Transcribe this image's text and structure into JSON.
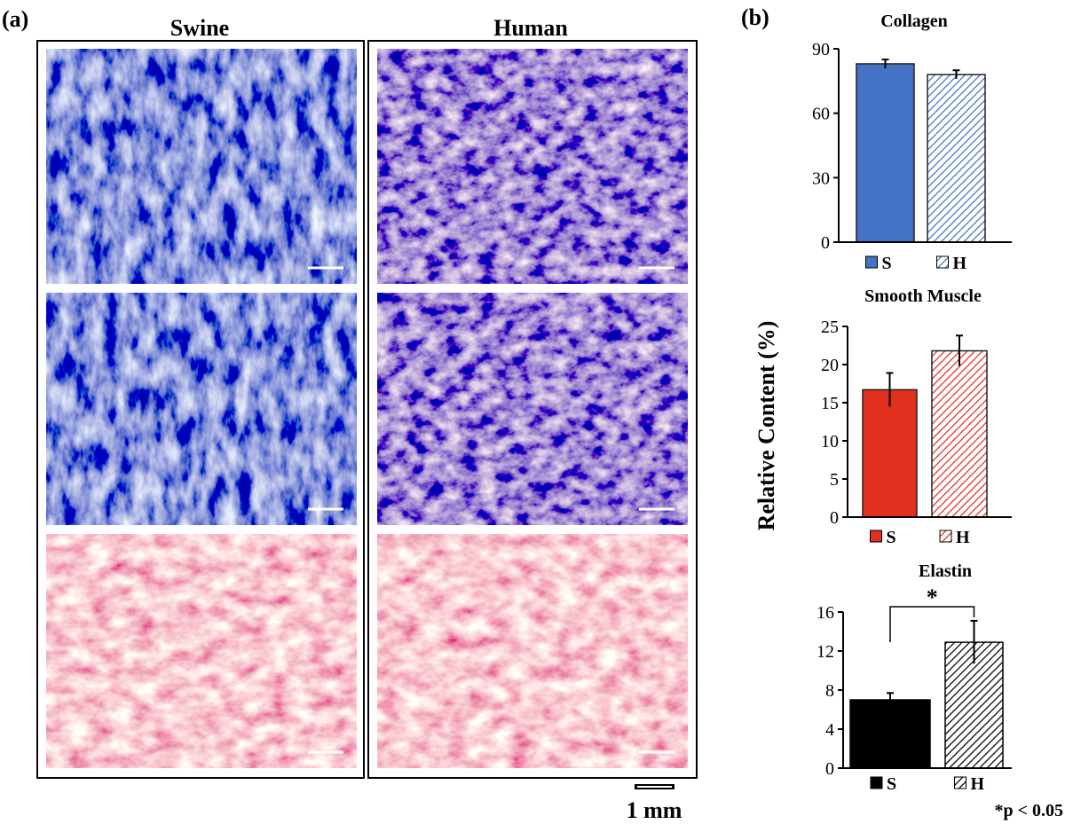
{
  "panel_a": {
    "label": "(a)",
    "columns": [
      "Swine",
      "Human"
    ],
    "scale_bar": "1 mm"
  },
  "panel_b_label": "(b)",
  "y_label": "Relative Content (%)",
  "chart_data": [
    {
      "type": "bar",
      "title": "Collagen",
      "categories": [
        "S",
        "H"
      ],
      "values": [
        83,
        78
      ],
      "errors": [
        2,
        2
      ],
      "colors": [
        "#4472c4",
        "#4472c4"
      ],
      "hatched": [
        false,
        true
      ],
      "ylim": [
        0,
        90
      ],
      "yticks": [
        0,
        30,
        60,
        90
      ]
    },
    {
      "type": "bar",
      "title": "Smooth Muscle",
      "categories": [
        "S",
        "H"
      ],
      "values": [
        16.7,
        21.8
      ],
      "errors": [
        2.2,
        2
      ],
      "colors": [
        "#e0301e",
        "#e0301e"
      ],
      "hatched": [
        false,
        true
      ],
      "ylim": [
        0,
        25
      ],
      "yticks": [
        0,
        5,
        10,
        15,
        20,
        25
      ]
    },
    {
      "type": "bar",
      "title": "Elastin",
      "categories": [
        "S",
        "H"
      ],
      "values": [
        7,
        12.9
      ],
      "errors": [
        0.7,
        2.2
      ],
      "colors": [
        "#000000",
        "#000000"
      ],
      "hatched": [
        false,
        true
      ],
      "ylim": [
        0,
        16
      ],
      "yticks": [
        0,
        4,
        8,
        12,
        16
      ],
      "annotation": "*",
      "note": "*p < 0.05"
    }
  ]
}
